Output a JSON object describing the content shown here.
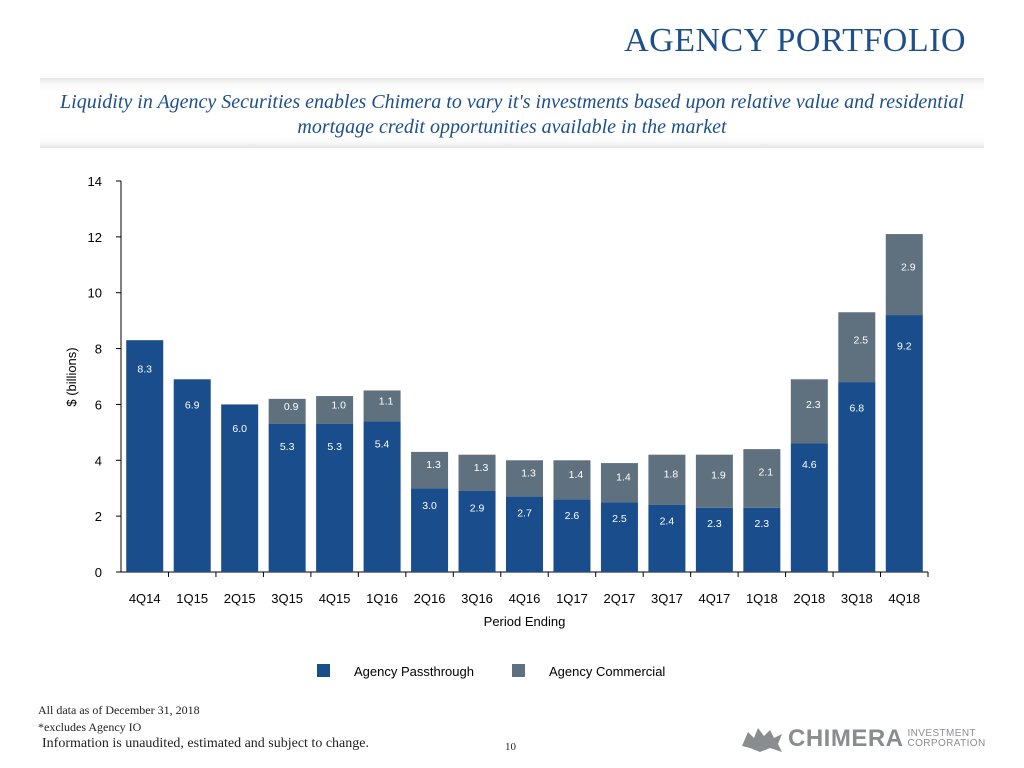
{
  "title": "AGENCY PORTFOLIO",
  "subtitle": "Liquidity in Agency Securities enables Chimera to vary it's investments based upon relative value and residential mortgage credit opportunities available in the market",
  "footnotes": {
    "date": "All data as of December 31, 2018",
    "excludes": "*excludes Agency IO",
    "disclaimer": "Information is unaudited, estimated and subject to change."
  },
  "page_number": "10",
  "logo": {
    "word": "CHIMERA",
    "line1": "INVESTMENT",
    "line2": "CORPORATION"
  },
  "colors": {
    "passthrough": "#1a4d8c",
    "commercial": "#5f717f",
    "title": "#1c4f8c"
  },
  "chart_data": {
    "type": "bar",
    "stacked": true,
    "categories": [
      "4Q14",
      "1Q15",
      "2Q15",
      "3Q15",
      "4Q15",
      "1Q16",
      "2Q16",
      "3Q16",
      "4Q16",
      "1Q17",
      "2Q17",
      "3Q17",
      "4Q17",
      "1Q18",
      "2Q18",
      "3Q18",
      "4Q18"
    ],
    "series": [
      {
        "name": "Agency Passthrough",
        "values": [
          8.3,
          6.9,
          6.0,
          5.3,
          5.3,
          5.4,
          3.0,
          2.9,
          2.7,
          2.6,
          2.5,
          2.4,
          2.3,
          2.3,
          4.6,
          6.8,
          9.2
        ],
        "labels": [
          "8.3",
          "6.9",
          "6.0",
          "5.3",
          "5.3",
          "5.4",
          "3.0",
          "2.9",
          "2.7",
          "2.6",
          "2.5",
          "2.4",
          "2.3",
          "2.3",
          "4.6",
          "6.8",
          "9.2"
        ]
      },
      {
        "name": "Agency Commercial",
        "values": [
          0,
          0,
          0,
          0.9,
          1.0,
          1.1,
          1.3,
          1.3,
          1.3,
          1.4,
          1.4,
          1.8,
          1.9,
          2.1,
          2.3,
          2.5,
          2.9
        ],
        "labels": [
          "",
          "",
          "",
          "0.9",
          "1.0",
          "1.1",
          "1.3",
          "1.3",
          "1.3",
          "1.4",
          "1.4",
          "1.8",
          "1.9",
          "2.1",
          "2.3",
          "2.5",
          "2.9"
        ]
      }
    ],
    "ylabel": "$ (billions)",
    "xlabel": "Period Ending",
    "ylim": [
      0,
      14
    ],
    "yticks": [
      "0",
      "2",
      "4",
      "6",
      "8",
      "10",
      "12",
      "14"
    ],
    "legend": "bottom"
  }
}
